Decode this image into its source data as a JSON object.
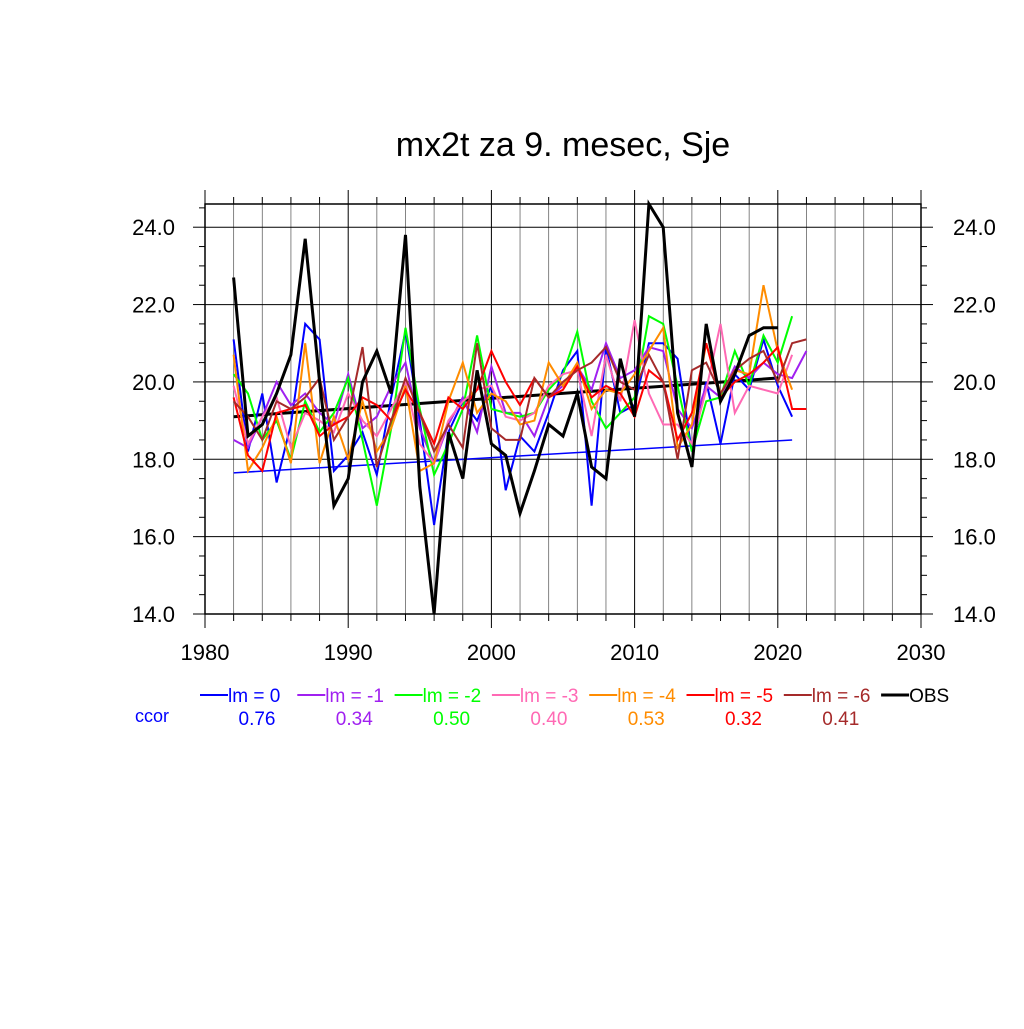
{
  "chart_data": {
    "type": "line",
    "title": "mx2t za 9. mesec, Sje",
    "xlabel": "",
    "ylabel": "",
    "xlim": [
      1980,
      2030
    ],
    "ylim": [
      14.0,
      24.6
    ],
    "x_ticks": [
      1980,
      1990,
      2000,
      2010,
      2020,
      2030
    ],
    "y_ticks": [
      14.0,
      16.0,
      18.0,
      20.0,
      22.0,
      24.0
    ],
    "x_tick_labels": [
      "1980",
      "1990",
      "2000",
      "2010",
      "2020",
      "2030"
    ],
    "y_tick_labels": [
      "14.0",
      "16.0",
      "18.0",
      "20.0",
      "22.0",
      "24.0"
    ],
    "grid": true,
    "legend_position": "bottom",
    "ccor_label": "ccor",
    "series": [
      {
        "name": "lm = 0",
        "color": "#0000ff",
        "ccor": "0.76",
        "x_start": 1982,
        "values": [
          21.1,
          18.2,
          19.7,
          17.4,
          18.9,
          21.5,
          21.1,
          17.7,
          18.1,
          18.7,
          17.6,
          19.6,
          21.3,
          19.0,
          16.3,
          18.7,
          19.5,
          19.0,
          19.9,
          17.2,
          18.6,
          18.2,
          19.2,
          20.3,
          20.8,
          16.8,
          20.9,
          19.2,
          19.4,
          21.0,
          21.0,
          20.6,
          18.2,
          20.0,
          18.4,
          20.2,
          19.8,
          21.1,
          19.9,
          19.1
        ],
        "trend": [
          17.65,
          18.5
        ]
      },
      {
        "name": "lm = -1",
        "color": "#a020f0",
        "ccor": "0.34",
        "x_start": 1982,
        "values": [
          18.5,
          18.3,
          19.1,
          20.0,
          19.4,
          19.7,
          19.2,
          18.9,
          20.2,
          18.8,
          19.1,
          19.9,
          20.5,
          18.8,
          17.9,
          18.9,
          19.6,
          18.7,
          20.4,
          19.2,
          19.2,
          18.6,
          19.6,
          19.9,
          20.4,
          19.8,
          21.0,
          20.1,
          20.3,
          20.9,
          20.8,
          19.3,
          18.8,
          19.9,
          19.6,
          20.4,
          20.1,
          20.5,
          20.2,
          20.1,
          20.8
        ],
        "trend": null
      },
      {
        "name": "lm = -2",
        "color": "#00ff00",
        "ccor": "0.50",
        "x_start": 1982,
        "values": [
          20.2,
          19.7,
          18.5,
          19.0,
          18.0,
          19.5,
          18.7,
          19.2,
          20.1,
          18.5,
          16.8,
          18.8,
          21.4,
          19.3,
          17.6,
          18.4,
          19.3,
          21.2,
          19.3,
          19.2,
          19.1,
          19.2,
          19.8,
          20.2,
          21.3,
          19.5,
          18.8,
          19.2,
          19.6,
          21.7,
          21.5,
          19.9,
          18.2,
          19.5,
          19.6,
          20.8,
          19.9,
          21.2,
          20.5,
          21.7
        ],
        "trend": null
      },
      {
        "name": "lm = -3",
        "color": "#ff69b4",
        "ccor": "0.40",
        "x_start": 1982,
        "values": [
          19.9,
          18.4,
          19.1,
          19.6,
          18.3,
          19.2,
          19.0,
          18.7,
          19.7,
          19.0,
          18.6,
          19.3,
          20.0,
          18.4,
          17.9,
          19.0,
          19.5,
          19.8,
          19.9,
          19.1,
          19.0,
          19.2,
          19.9,
          20.2,
          20.3,
          18.6,
          20.7,
          19.5,
          21.6,
          19.7,
          18.9,
          18.9,
          18.4,
          19.8,
          21.5,
          19.2,
          19.9,
          19.8,
          19.7,
          20.7
        ],
        "trend": null
      },
      {
        "name": "lm = -4",
        "color": "#ff8c00",
        "ccor": "0.53",
        "x_start": 1982,
        "values": [
          20.7,
          17.7,
          18.3,
          19.1,
          17.9,
          21.0,
          17.9,
          19.1,
          18.0,
          19.5,
          18.2,
          18.8,
          19.9,
          17.7,
          17.9,
          19.5,
          20.5,
          19.2,
          19.7,
          19.5,
          18.9,
          19.0,
          20.5,
          19.9,
          20.5,
          19.3,
          19.8,
          19.7,
          20.2,
          20.8,
          21.4,
          18.3,
          18.9,
          21.0,
          19.7,
          20.3,
          20.2,
          22.5,
          20.8,
          19.8
        ],
        "trend": null
      },
      {
        "name": "lm = -5",
        "color": "#ff0000",
        "ccor": "0.32",
        "x_start": 1982,
        "values": [
          19.6,
          18.1,
          17.7,
          19.2,
          19.3,
          19.4,
          18.6,
          18.9,
          19.1,
          19.6,
          19.4,
          19.0,
          19.8,
          19.2,
          18.4,
          19.6,
          19.3,
          19.8,
          20.8,
          20.0,
          19.4,
          20.1,
          19.6,
          19.8,
          20.4,
          19.6,
          19.9,
          19.7,
          19.1,
          20.3,
          20.0,
          18.5,
          19.2,
          21.0,
          19.6,
          20.0,
          20.2,
          20.5,
          20.9,
          19.3,
          19.3
        ],
        "trend": null
      },
      {
        "name": "lm = -6",
        "color": "#a52a2a",
        "ccor": "0.41",
        "x_start": 1982,
        "values": [
          19.5,
          19.1,
          18.5,
          19.5,
          19.3,
          19.6,
          20.1,
          18.5,
          19.1,
          20.9,
          17.8,
          19.0,
          20.1,
          19.2,
          18.2,
          18.9,
          18.3,
          21.0,
          18.8,
          18.5,
          18.5,
          20.1,
          19.6,
          20.0,
          20.3,
          20.5,
          20.9,
          20.0,
          19.8,
          20.7,
          20.0,
          18.0,
          20.3,
          20.5,
          19.7,
          20.3,
          20.6,
          20.8,
          20.0,
          21.0,
          21.1
        ],
        "trend": null
      },
      {
        "name": "OBS",
        "color": "#000000",
        "ccor": "",
        "x_start": 1982,
        "values": [
          22.7,
          18.6,
          18.9,
          19.7,
          20.7,
          23.7,
          20.0,
          16.8,
          17.5,
          20.0,
          20.8,
          19.7,
          23.8,
          17.3,
          14.0,
          18.7,
          17.5,
          20.3,
          18.4,
          18.1,
          16.6,
          17.7,
          18.9,
          18.6,
          19.7,
          17.8,
          17.5,
          20.6,
          19.1,
          24.6,
          24.0,
          19.2,
          17.8,
          21.5,
          19.5,
          20.2,
          21.2,
          21.4,
          21.4
        ],
        "trend": [
          19.1,
          20.1
        ]
      }
    ]
  }
}
